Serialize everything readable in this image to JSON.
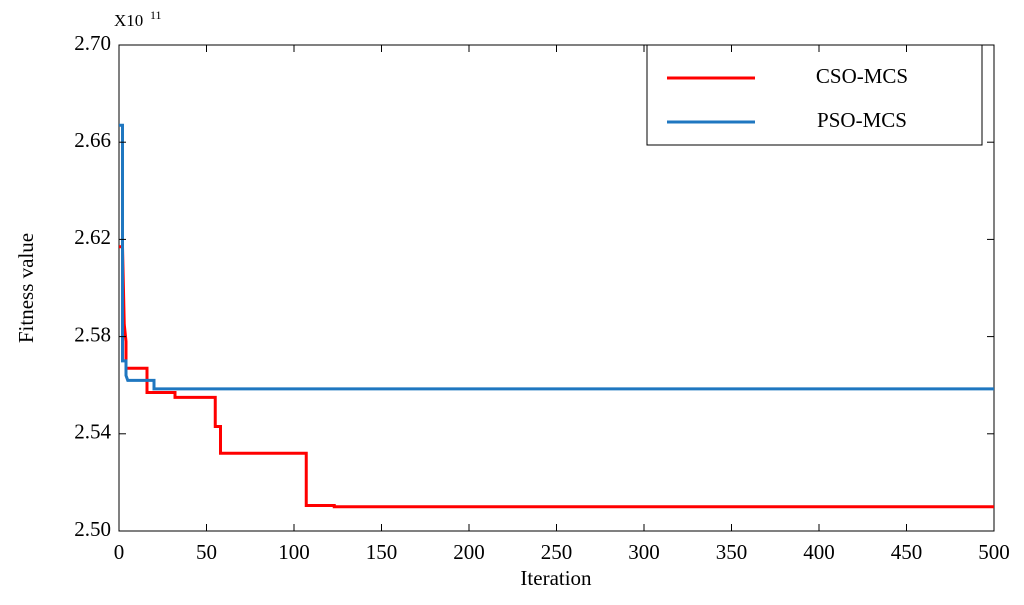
{
  "chart_data": {
    "type": "line",
    "x_label": "Iteration",
    "y_label": "Fitness value",
    "y_scale_label": {
      "base": "X10",
      "exponent": "11"
    },
    "xlim": [
      0,
      500
    ],
    "xticks": [
      0,
      50,
      100,
      150,
      200,
      250,
      300,
      350,
      400,
      450,
      500
    ],
    "ylim": [
      2.5,
      2.7
    ],
    "yticks": [
      {
        "value": 2.5,
        "label": "2.50"
      },
      2.54,
      2.58,
      2.62,
      2.66,
      {
        "value": 2.7,
        "label": "2.70"
      }
    ],
    "grid": false,
    "legend": "upper right",
    "series": [
      {
        "name": "CSO-MCS",
        "color": "#ff0000",
        "x": [
          0,
          2,
          3,
          4,
          4,
          16,
          16,
          32,
          32,
          55,
          55,
          58,
          58,
          107,
          107,
          123,
          123,
          500
        ],
        "values": [
          2.617,
          2.617,
          2.585,
          2.578,
          2.567,
          2.567,
          2.557,
          2.557,
          2.555,
          2.555,
          2.543,
          2.543,
          2.532,
          2.532,
          2.5105,
          2.5105,
          2.51,
          2.51
        ]
      },
      {
        "name": "PSO-MCS",
        "color": "#1f77c0",
        "x": [
          0,
          2,
          2,
          4,
          4,
          5,
          20,
          20,
          500
        ],
        "values": [
          2.667,
          2.667,
          2.57,
          2.57,
          2.564,
          2.562,
          2.562,
          2.5585,
          2.5585
        ]
      }
    ]
  }
}
